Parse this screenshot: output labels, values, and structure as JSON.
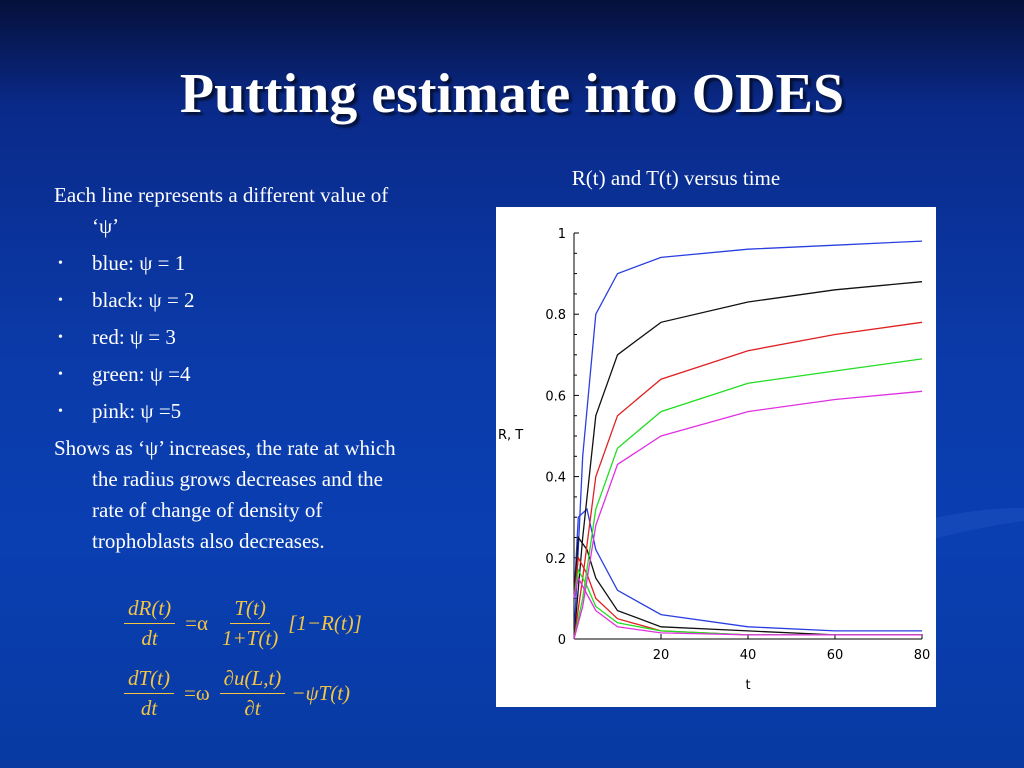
{
  "slide": {
    "title": "Putting estimate into ODES",
    "intro": "Each line represents a different value of ‘ψ’",
    "bullets": [
      "blue: ψ = 1",
      "black: ψ = 2",
      "red: ψ = 3",
      "green: ψ =4",
      "pink: ψ =5"
    ],
    "conclusion": "Shows as ‘ψ’ increases, the rate at which the radius grows decreases and the rate of change of density of trophoblasts also decreases."
  },
  "equations": {
    "eq1": {
      "lhs_num": "dR(t)",
      "lhs_den": "dt",
      "op": "=α",
      "rhs_num": "T(t)",
      "rhs_den": "1+T(t)",
      "tail": "[1−R(t)]"
    },
    "eq2": {
      "lhs_num": "dT(t)",
      "lhs_den": "dt",
      "op": "=ω",
      "rhs_num": "∂u(L,t)",
      "rhs_den": "∂t",
      "tail": "−ψT(t)"
    }
  },
  "chart_data": {
    "type": "line",
    "title": "R(t) and T(t) versus time",
    "xlabel": "t",
    "ylabel": "R, T",
    "xlim": [
      0,
      80
    ],
    "ylim": [
      0,
      1
    ],
    "x_ticks": [
      "20",
      "40",
      "60",
      "80"
    ],
    "y_ticks": [
      "0",
      "0.2",
      "0.4",
      "0.6",
      "0.8",
      "1"
    ],
    "grid": false,
    "series": [
      {
        "color": "#2a3fe0",
        "R": {
          "x": [
            0,
            2,
            5,
            10,
            20,
            40,
            60,
            80
          ],
          "y": [
            0,
            0.45,
            0.8,
            0.9,
            0.94,
            0.96,
            0.97,
            0.98
          ]
        },
        "T": {
          "x": [
            0,
            1,
            3,
            5,
            10,
            20,
            40,
            60,
            80
          ],
          "y": [
            0.1,
            0.3,
            0.32,
            0.22,
            0.12,
            0.06,
            0.03,
            0.02,
            0.02
          ]
        }
      },
      {
        "color": "#111111",
        "R": {
          "x": [
            0,
            2,
            5,
            10,
            20,
            40,
            60,
            80
          ],
          "y": [
            0,
            0.25,
            0.55,
            0.7,
            0.78,
            0.83,
            0.86,
            0.88
          ]
        },
        "T": {
          "x": [
            0,
            1,
            3,
            5,
            10,
            20,
            40,
            60,
            80
          ],
          "y": [
            0.1,
            0.25,
            0.22,
            0.15,
            0.07,
            0.03,
            0.02,
            0.01,
            0.01
          ]
        }
      },
      {
        "color": "#e02020",
        "R": {
          "x": [
            0,
            2,
            5,
            10,
            20,
            40,
            60,
            80
          ],
          "y": [
            0,
            0.15,
            0.4,
            0.55,
            0.64,
            0.71,
            0.75,
            0.78
          ]
        },
        "T": {
          "x": [
            0,
            1,
            3,
            5,
            10,
            20,
            40,
            60,
            80
          ],
          "y": [
            0.1,
            0.2,
            0.16,
            0.1,
            0.05,
            0.02,
            0.01,
            0.01,
            0.01
          ]
        }
      },
      {
        "color": "#22dd22",
        "R": {
          "x": [
            0,
            2,
            5,
            10,
            20,
            40,
            60,
            80
          ],
          "y": [
            0,
            0.1,
            0.32,
            0.47,
            0.56,
            0.63,
            0.66,
            0.69
          ]
        },
        "T": {
          "x": [
            0,
            1,
            3,
            5,
            10,
            20,
            40,
            60,
            80
          ],
          "y": [
            0.1,
            0.17,
            0.13,
            0.08,
            0.04,
            0.02,
            0.01,
            0.01,
            0.01
          ]
        }
      },
      {
        "color": "#e030e0",
        "R": {
          "x": [
            0,
            2,
            5,
            10,
            20,
            40,
            60,
            80
          ],
          "y": [
            0,
            0.08,
            0.28,
            0.43,
            0.5,
            0.56,
            0.59,
            0.61
          ]
        },
        "T": {
          "x": [
            0,
            1,
            3,
            5,
            10,
            20,
            40,
            60,
            80
          ],
          "y": [
            0.1,
            0.15,
            0.11,
            0.07,
            0.03,
            0.015,
            0.01,
            0.01,
            0.01
          ]
        }
      }
    ]
  }
}
